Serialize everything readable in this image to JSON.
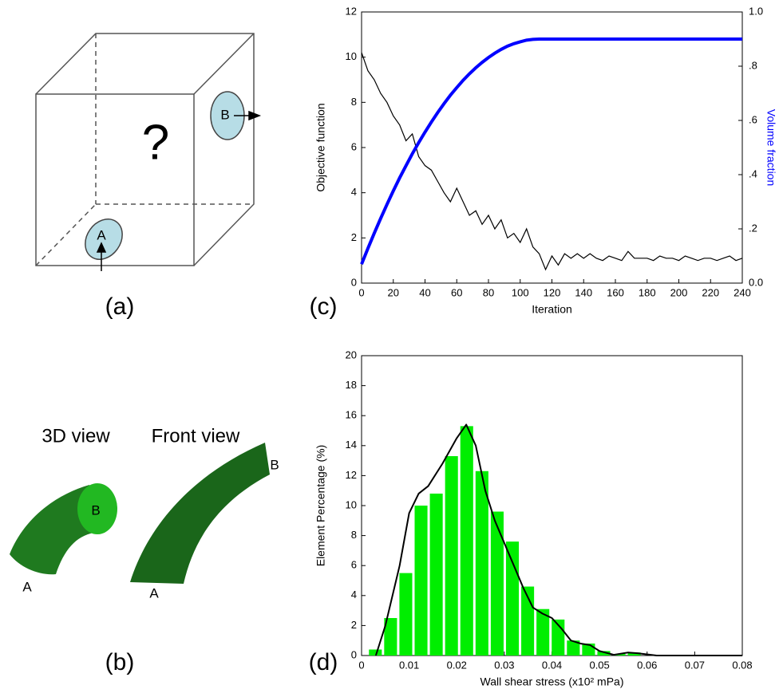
{
  "panels": {
    "a": {
      "question": "?",
      "inlet": "A",
      "outlet": "B",
      "label": "(a)"
    },
    "b": {
      "view_3d": "3D view",
      "view_front": "Front view",
      "inlet_3d": "A",
      "outlet_3d": "B",
      "inlet_front": "A",
      "outlet_front": "B",
      "label": "(b)"
    },
    "c": {
      "label": "(c)"
    },
    "d": {
      "label": "(d)"
    }
  },
  "chart_data": [
    {
      "type": "line",
      "x_label": "Iteration",
      "y_label": "Objective function",
      "y2_label": "Volume fraction",
      "x": [
        0,
        4,
        8,
        12,
        16,
        20,
        24,
        28,
        32,
        36,
        40,
        44,
        48,
        52,
        56,
        60,
        64,
        68,
        72,
        76,
        80,
        84,
        88,
        92,
        96,
        100,
        104,
        108,
        112,
        116,
        120,
        124,
        128,
        132,
        136,
        140,
        144,
        148,
        152,
        156,
        160,
        164,
        168,
        172,
        176,
        180,
        184,
        188,
        192,
        196,
        200,
        204,
        208,
        212,
        216,
        220,
        224,
        228,
        232,
        236,
        240
      ],
      "series": [
        {
          "name": "Objective function",
          "color": "#000000",
          "values": [
            10.2,
            9.4,
            9.0,
            8.4,
            8.0,
            7.4,
            7.0,
            6.3,
            6.6,
            5.6,
            5.2,
            5.0,
            4.5,
            4.0,
            3.6,
            4.2,
            3.6,
            3.0,
            3.2,
            2.6,
            3.0,
            2.4,
            2.8,
            2.0,
            2.2,
            1.8,
            2.4,
            1.6,
            1.3,
            0.6,
            1.2,
            0.8,
            1.3,
            1.1,
            1.3,
            1.1,
            1.3,
            1.1,
            1.0,
            1.2,
            1.1,
            1.0,
            1.4,
            1.1,
            1.1,
            1.1,
            1.0,
            1.2,
            1.1,
            1.1,
            1.0,
            1.2,
            1.1,
            1.0,
            1.1,
            1.1,
            1.0,
            1.1,
            1.2,
            1.0,
            1.1
          ]
        },
        {
          "name": "Volume fraction",
          "color": "#0000ff",
          "axis": "y2",
          "values": [
            0.07,
            0.128,
            0.184,
            0.238,
            0.29,
            0.34,
            0.388,
            0.433,
            0.477,
            0.518,
            0.557,
            0.594,
            0.629,
            0.662,
            0.693,
            0.721,
            0.748,
            0.772,
            0.794,
            0.814,
            0.832,
            0.848,
            0.862,
            0.874,
            0.883,
            0.89,
            0.896,
            0.899,
            0.9,
            0.9,
            0.9,
            0.9,
            0.9,
            0.9,
            0.9,
            0.9,
            0.9,
            0.9,
            0.9,
            0.9,
            0.9,
            0.9,
            0.9,
            0.9,
            0.9,
            0.9,
            0.9,
            0.9,
            0.9,
            0.9,
            0.9,
            0.9,
            0.9,
            0.9,
            0.9,
            0.9,
            0.9,
            0.9,
            0.9,
            0.9,
            0.9
          ]
        }
      ],
      "xlim": [
        0,
        240
      ],
      "xticks": [
        0,
        20,
        40,
        60,
        80,
        100,
        120,
        140,
        160,
        180,
        200,
        220,
        240
      ],
      "ylim": [
        0,
        12
      ],
      "yticks": [
        0,
        2,
        4,
        6,
        8,
        10,
        12
      ],
      "y2lim": [
        0,
        1
      ],
      "y2ticks": [
        {
          "value": 0,
          "label": "0.0"
        },
        {
          "value": 0.2,
          "label": ".2"
        },
        {
          "value": 0.4,
          "label": ".4"
        },
        {
          "value": 0.6,
          "label": ".6"
        },
        {
          "value": 0.8,
          "label": ".8"
        },
        {
          "value": 1,
          "label": "1.0"
        }
      ]
    },
    {
      "type": "histogram",
      "x_label": "Wall shear stress (x10² mPa)",
      "y_label": "Element Percentage (%)",
      "color": "#00ee00",
      "bins": [
        0.0013,
        0.0045,
        0.0077,
        0.0109,
        0.0141,
        0.0173,
        0.0205,
        0.0237,
        0.0269,
        0.0301,
        0.0333,
        0.0365,
        0.0397,
        0.0429,
        0.0461,
        0.0493,
        0.0525,
        0.0557,
        0.0589
      ],
      "values": [
        0.4,
        2.5,
        5.5,
        10.0,
        10.8,
        13.3,
        15.3,
        12.3,
        9.6,
        7.6,
        4.6,
        3.1,
        2.4,
        1.0,
        0.8,
        0.3,
        0.1,
        0.2
      ],
      "curve": {
        "color": "#000000",
        "x": [
          0.003,
          0.005,
          0.008,
          0.01,
          0.012,
          0.014,
          0.017,
          0.02,
          0.022,
          0.024,
          0.026,
          0.028,
          0.03,
          0.032,
          0.034,
          0.036,
          0.038,
          0.04,
          0.042,
          0.044,
          0.046,
          0.048,
          0.05,
          0.053,
          0.056,
          0.058,
          0.062,
          0.08
        ],
        "values": [
          0,
          2,
          6,
          9.5,
          10.8,
          11.3,
          12.8,
          14.5,
          15.4,
          14,
          11,
          9,
          7.5,
          6,
          4.5,
          3.2,
          2.8,
          2.5,
          1.8,
          1.0,
          0.8,
          0.7,
          0.3,
          0.05,
          0.2,
          0.15,
          0,
          0
        ]
      },
      "xlim": [
        0,
        0.08
      ],
      "xticks": [
        0,
        0.01,
        0.02,
        0.03,
        0.04,
        0.05,
        0.06,
        0.07,
        0.08
      ],
      "ylim": [
        0,
        20
      ],
      "yticks": [
        0,
        2,
        4,
        6,
        8,
        10,
        12,
        14,
        16,
        18,
        20
      ]
    }
  ]
}
